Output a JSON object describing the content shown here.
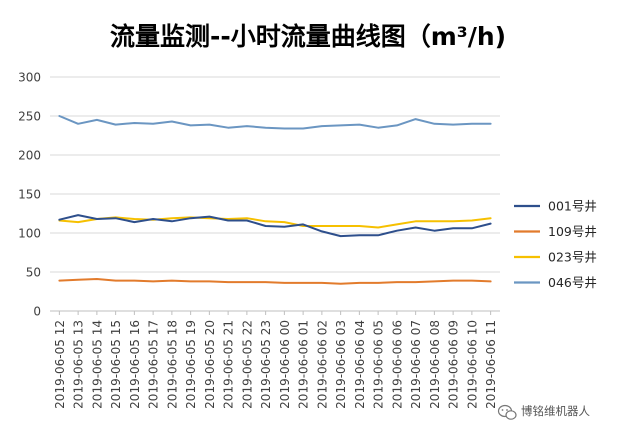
{
  "chart_data": {
    "type": "line",
    "title": "流量监测--小时流量曲线图（m³/h)",
    "xlabel": "",
    "ylabel": "",
    "ylim": [
      0,
      300
    ],
    "yticks": [
      0,
      50,
      100,
      150,
      200,
      250,
      300
    ],
    "grid": true,
    "legend_position": "right",
    "categories": [
      "2019-06-05 12",
      "2019-06-05 13",
      "2019-06-05 14",
      "2019-06-05 15",
      "2019-06-05 16",
      "2019-06-05 17",
      "2019-06-05 18",
      "2019-06-05 19",
      "2019-06-05 20",
      "2019-06-05 21",
      "2019-06-05 22",
      "2019-06-05 23",
      "2019-06-06 00",
      "2019-06-06 01",
      "2019-06-06 02",
      "2019-06-06 03",
      "2019-06-06 04",
      "2019-06-06 05",
      "2019-06-06 06",
      "2019-06-06 07",
      "2019-06-06 08",
      "2019-06-06 09",
      "2019-06-06 10",
      "2019-06-06 11"
    ],
    "series": [
      {
        "name": "001号井",
        "color": "#2e4f8c",
        "values": [
          117,
          123,
          118,
          119,
          114,
          118,
          115,
          119,
          121,
          116,
          116,
          109,
          108,
          111,
          102,
          96,
          97,
          97,
          103,
          107,
          103,
          106,
          106,
          112
        ]
      },
      {
        "name": "109号井",
        "color": "#e27b2c",
        "values": [
          39,
          40,
          41,
          39,
          39,
          38,
          39,
          38,
          38,
          37,
          37,
          37,
          36,
          36,
          36,
          35,
          36,
          36,
          37,
          37,
          38,
          39,
          39,
          38
        ]
      },
      {
        "name": "023号井",
        "color": "#f6c000",
        "values": [
          116,
          114,
          118,
          120,
          118,
          117,
          119,
          120,
          119,
          118,
          119,
          115,
          114,
          109,
          109,
          109,
          109,
          107,
          111,
          115,
          115,
          115,
          116,
          119
        ]
      },
      {
        "name": "046号井",
        "color": "#6b96c2",
        "values": [
          250,
          240,
          245,
          239,
          241,
          240,
          243,
          238,
          239,
          235,
          237,
          235,
          234,
          234,
          237,
          238,
          239,
          235,
          238,
          246,
          240,
          239,
          240,
          240
        ]
      }
    ]
  },
  "watermark": {
    "text": "博铭维机器人",
    "icon": "wechat-icon"
  }
}
